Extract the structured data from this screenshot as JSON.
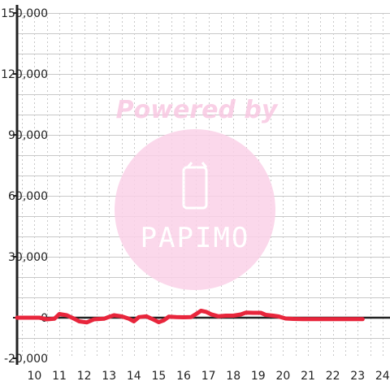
{
  "chart_data": {
    "type": "line",
    "title": "",
    "xlabel": "",
    "ylabel": "",
    "xlim": [
      9.3,
      24.3
    ],
    "ylim": [
      -20000,
      150000
    ],
    "x_ticks": [
      10,
      11,
      12,
      13,
      14,
      15,
      16,
      17,
      18,
      19,
      20,
      21,
      22,
      23,
      24
    ],
    "x_tick_labels": [
      "10",
      "11",
      "12",
      "13",
      "14",
      "15",
      "16",
      "17",
      "18",
      "19",
      "20",
      "21",
      "22",
      "23",
      "24"
    ],
    "y_ticks": [
      -20000,
      0,
      30000,
      60000,
      90000,
      120000,
      150000
    ],
    "y_tick_labels": [
      "-20,000",
      "0",
      "30,000",
      "60,000",
      "90,000",
      "120,000",
      "150,000"
    ],
    "grid": true,
    "legend": "none",
    "series": [
      {
        "color": "#e8263c",
        "x": [
          9.3,
          9.8,
          10.2,
          10.5,
          10.8,
          11.0,
          11.3,
          11.6,
          11.8,
          12.1,
          12.4,
          12.8,
          13.0,
          13.2,
          13.5,
          13.8,
          14.0,
          14.2,
          14.5,
          14.8,
          15.0,
          15.2,
          15.4,
          15.7,
          16.0,
          16.3,
          16.5,
          16.7,
          16.9,
          17.1,
          17.4,
          17.7,
          18.0,
          18.3,
          18.5,
          18.8,
          19.1,
          19.3,
          19.6,
          19.8,
          20.1,
          20.4,
          20.8,
          21.2,
          21.6,
          22.0,
          22.4,
          22.8,
          23.2
        ],
        "y": [
          0,
          0,
          0,
          -800,
          -500,
          1800,
          1200,
          -500,
          -1800,
          -2300,
          -800,
          -500,
          400,
          1200,
          700,
          -500,
          -1800,
          300,
          700,
          -1000,
          -2200,
          -1300,
          500,
          300,
          200,
          300,
          1800,
          3400,
          2900,
          1700,
          700,
          1000,
          1000,
          1600,
          2500,
          2400,
          2400,
          1400,
          1000,
          700,
          -400,
          -600,
          -700,
          -700,
          -700,
          -700,
          -700,
          -700,
          -700
        ]
      }
    ]
  },
  "watermark": {
    "text_top": "Powered by",
    "text_bottom": "PAPIMO",
    "color": "#f9c8e2"
  },
  "colors": {
    "line": "#e8263c",
    "axis": "#222222",
    "grid_h": "#c8c8c8",
    "grid_v": "#c8c8c8"
  }
}
